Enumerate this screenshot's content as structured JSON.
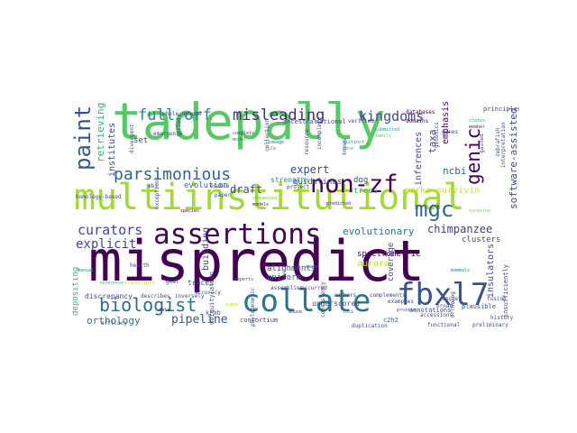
{
  "colors": {
    "purple_dark": "#440154",
    "purple": "#482878",
    "indigo": "#3e4a89",
    "blue": "#31688e",
    "teal": "#26828e",
    "teal_green": "#1f9e89",
    "green": "#35b779",
    "green_light": "#6ece58",
    "lime": "#b5de2b",
    "yellow": "#fde725"
  },
  "words": {
    "tadepally": "tadepally",
    "multiinstitutional": "multiinstitutional",
    "mispredict": "mispredict",
    "assertions": "assertions",
    "collate": "collate",
    "fbxl7": "fbxl7",
    "non_zf": "non-zf",
    "mgc": "mgc",
    "genic": "genic",
    "biologist": "biologist",
    "paint": "paint",
    "full_orf": "full-orf",
    "misleading": "misleading",
    "kingdoms": "kingdoms",
    "parsimonious": "parsimonious",
    "curators": "curators",
    "explicit": "explicit",
    "pipeline": "pipeline",
    "orthology": "orthology",
    "chimpanzee": "chimpanzee",
    "evolutionary": "evolutionary",
    "expert": "expert",
    "draft": "draft",
    "retrieving": "retrieving",
    "ncbi": "ncbi",
    "taxa": "taxa",
    "software_assisted": "software-assisted",
    "aurka_survivin": "aurka-survivin",
    "guidelines": "guidelines",
    "evolution": "evolution",
    "institutes": "institutes",
    "inferences": "inferences",
    "emphasis": "emphasis",
    "clusters": "clusters",
    "coverage": "coverage",
    "spectrometric": "spectrometric",
    "insulators": "insulators",
    "aurora": "aurora",
    "building": "building",
    "depositing": "depositing",
    "discrepancy": "discrepancy",
    "alignments": "alignments",
    "uniform": "uniform",
    "dog": "dog",
    "set": "set",
    "trees": "trees",
    "strengths": "strengths",
    "principles": "principles",
    "underscored": "underscored",
    "consortium": "consortium",
    "annotations": "annotations",
    "traces": "traces",
    "krab": "krab",
    "c2h2": "c2h2",
    "ancestral": "ancestral",
    "databases": "databases",
    "plausible": "plausible",
    "duplication": "duplication",
    "ubiquitylation": "ubiquitylation",
    "accuracy": "accuracy",
    "whole_genome": "whole-genome",
    "emergence": "emergence",
    "homology_based": "homology-based",
    "complements": "complements",
    "insufficiently": "insufficiently",
    "accessions": "accessions",
    "authors": "authors",
    "examples": "examples",
    "project": "project",
    "assemblies": "assemblies",
    "occurred": "occurred",
    "national": "national",
    "verified": "verified",
    "domains": "domains",
    "preliminary": "preliminary",
    "functional": "functional",
    "health": "health",
    "efficacy": "efficacy",
    "ebi": "ebi",
    "genes": "genes",
    "fusion": "fusion",
    "target": "target",
    "history": "history",
    "enable": "enable",
    "paper": "paper",
    "goal": "goal",
    "broad": "broad",
    "describes": "describes",
    "inversely": "inversely",
    "exceptions": "exceptions",
    "incomplete": "incomplete",
    "phylogenetic": "phylogenetic",
    "resource": "resource",
    "ortholog": "ortholog",
    "gained": "gained",
    "known": "known",
    "genomics": "genomics",
    "collection": "collection",
    "zebrafish": "zebrafish",
    "sorted": "sorted",
    "divergent": "divergent",
    "consistency": "consistency",
    "interpretation": "interpretation",
    "complete": "complete",
    "lineage": "lineage",
    "distinct": "distinct",
    "submitted": "submitted",
    "status": "status",
    "sequenced": "sequenced",
    "predicted": "predicted",
    "species": "species",
    "transcripts": "transcripts",
    "experts": "experts",
    "scale": "scale",
    "mammals": "mammals",
    "manual": "manual",
    "reference": "reference",
    "curation": "curation",
    "mouse": "mouse",
    "data": "data",
    "human": "human",
    "protein": "protein",
    "loci": "loci",
    "model": "model",
    "rule": "rule",
    "gene": "gene",
    "family": "family",
    "member": "member",
    "models": "models"
  }
}
